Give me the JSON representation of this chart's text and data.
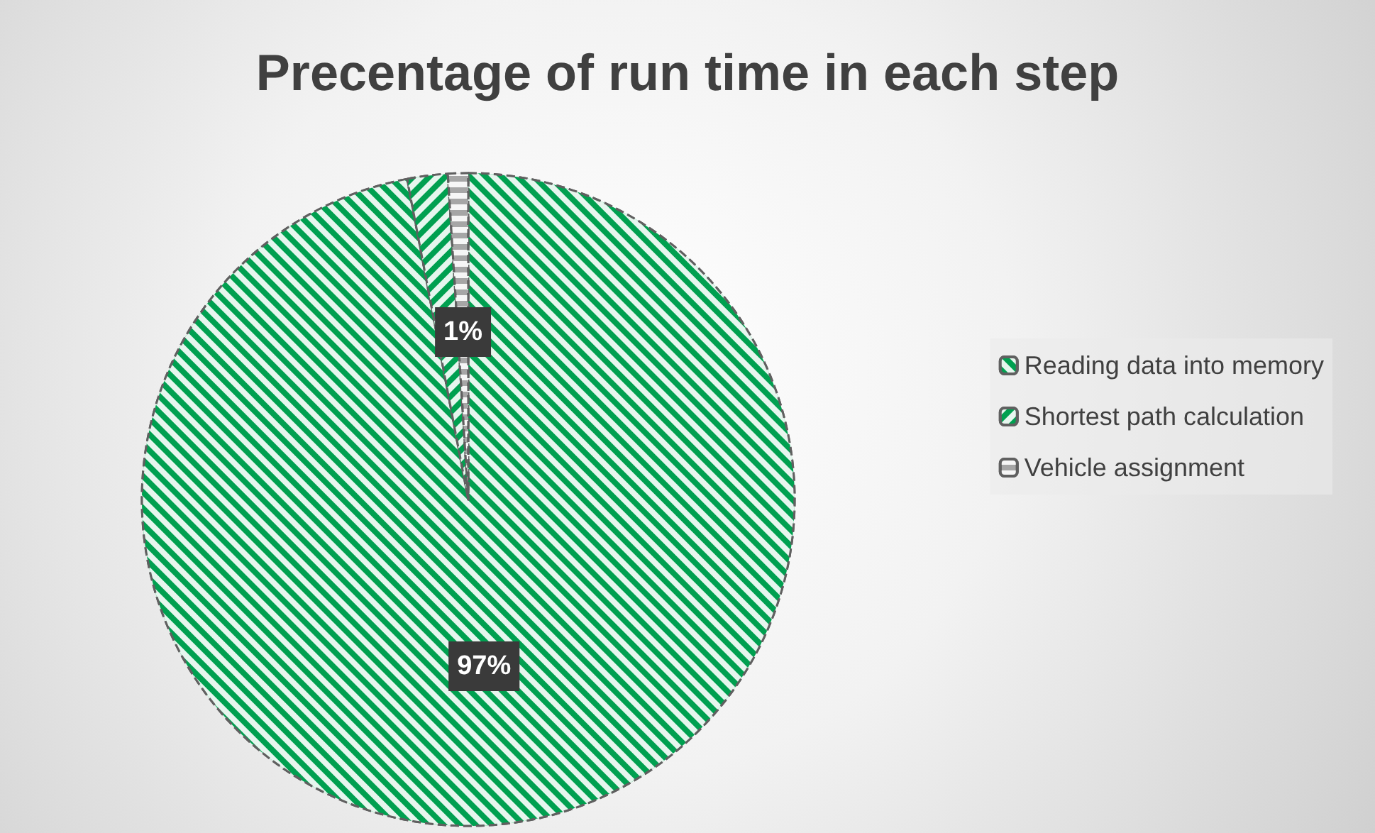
{
  "chart_data": {
    "type": "pie",
    "title": "Precentage of run time in each step",
    "categories": [
      "Reading data into memory",
      "Shortest path calculation",
      "Vehicle assignment"
    ],
    "values": [
      97,
      2,
      1
    ],
    "value_labels": [
      "97%",
      null,
      "1%"
    ],
    "colors": [
      "#00a050",
      "#00a050",
      "#a6a6a6"
    ],
    "legend": "right"
  }
}
